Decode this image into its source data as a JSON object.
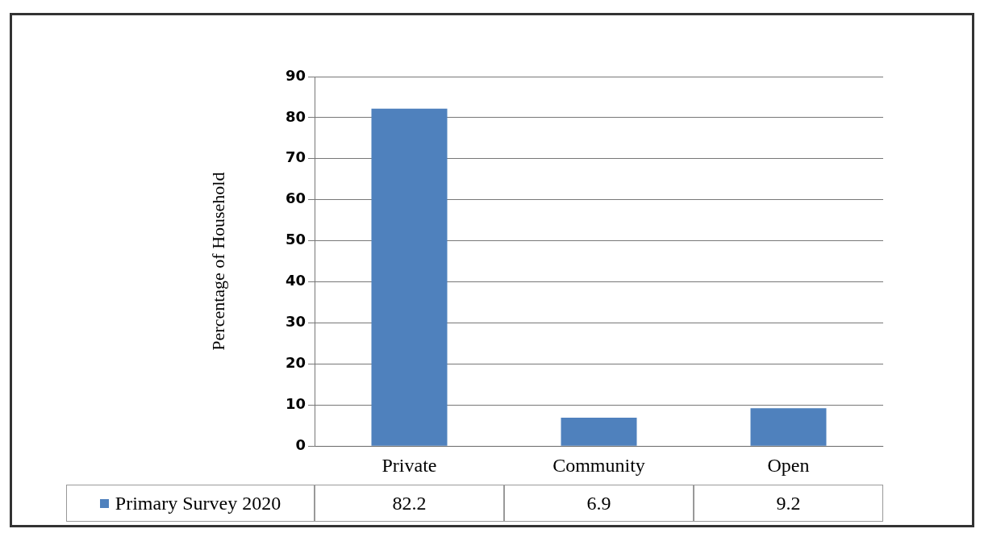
{
  "chart_data": {
    "type": "bar",
    "ylabel": "Percentage of Household",
    "categories": [
      "Private",
      "Community",
      "Open"
    ],
    "series": [
      {
        "name": "Primary Survey 2020",
        "color": "#4f81bd",
        "values": [
          82.2,
          6.9,
          9.2
        ]
      }
    ],
    "ylim": [
      0,
      90
    ],
    "yticks": [
      0,
      10,
      20,
      30,
      40,
      50,
      60,
      70,
      80,
      90
    ],
    "grid": "y",
    "legend": "bottom",
    "data_labels": true
  }
}
